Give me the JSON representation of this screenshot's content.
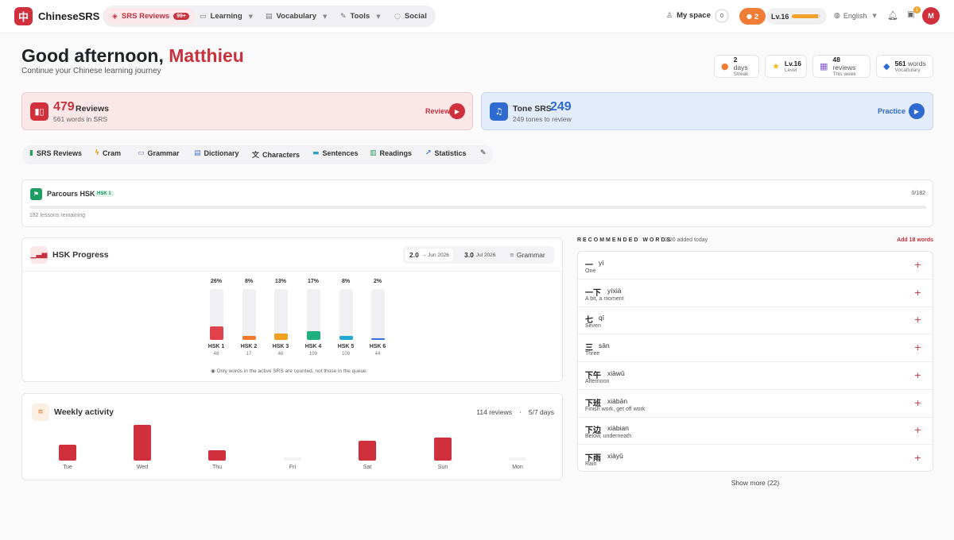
{
  "app": {
    "logo_glyph": "中",
    "name": "ChineseSRS"
  },
  "nav": {
    "items": [
      {
        "label": "SRS Reviews",
        "badge": "99+",
        "icon": "layers-icon",
        "glyph": "◈"
      },
      {
        "label": "Learning",
        "icon": "book-icon",
        "glyph": "▭"
      },
      {
        "label": "Vocabulary",
        "icon": "cards-icon",
        "glyph": "▤"
      },
      {
        "label": "Tools",
        "icon": "wrench-icon",
        "glyph": "✎"
      },
      {
        "label": "Social",
        "icon": "chat-icon",
        "glyph": "◌"
      }
    ]
  },
  "header": {
    "my_space": "My space",
    "counter": "0",
    "streak": "2",
    "level": "Lv.16",
    "level_progress": 0.9,
    "language": "English",
    "inbox_badge": "1",
    "avatar_initial": "M"
  },
  "greeting": {
    "prefix": "Good afternoon, ",
    "name": "Matthieu",
    "subtitle": "Continue your Chinese learning journey"
  },
  "stats": [
    {
      "value": "2",
      "unit": "days",
      "label": "Streak",
      "icon": "fire-icon"
    },
    {
      "value": "Lv.16",
      "unit": "",
      "label": "Level",
      "icon": "star-icon"
    },
    {
      "value": "48",
      "unit": "reviews",
      "label": "This week",
      "icon": "calendar-icon"
    },
    {
      "value": "561",
      "unit": "words",
      "label": "Vocabulary",
      "icon": "stack-icon"
    }
  ],
  "review_card": {
    "count": "479",
    "label": "Reviews",
    "sub": "561 words in SRS",
    "button": "Review"
  },
  "tone_card": {
    "label": "Tone SRS",
    "count": "249",
    "sub": "249 tones to review",
    "button": "Practice"
  },
  "tools": [
    {
      "label": "SRS Reviews"
    },
    {
      "label": "Cram"
    },
    {
      "label": "Grammar"
    },
    {
      "label": "Dictionary"
    },
    {
      "label": "Characters"
    },
    {
      "label": "Sentences"
    },
    {
      "label": "Readings"
    },
    {
      "label": "Statistics"
    }
  ],
  "parcours": {
    "title": "Parcours HSK",
    "tag": "HSK 1",
    "progress": "0/182",
    "progress_fraction": 0,
    "remaining": "182 lessons remaining"
  },
  "hsk_progress": {
    "title": "HSK Progress",
    "tabs": [
      {
        "label": "2.0",
        "sub": "→ Jun 2026"
      },
      {
        "label": "3.0",
        "sub": "Jul 2026"
      },
      {
        "label": "Grammar",
        "sub": ""
      }
    ],
    "levels": [
      {
        "name": "HSK 1",
        "percent": "26%",
        "fraction": 0.26,
        "count": "48",
        "color": "#e0414b"
      },
      {
        "name": "HSK 2",
        "percent": "8%",
        "fraction": 0.08,
        "count": "17",
        "color": "#f0782f"
      },
      {
        "name": "HSK 3",
        "percent": "13%",
        "fraction": 0.13,
        "count": "46",
        "color": "#f0a020"
      },
      {
        "name": "HSK 4",
        "percent": "17%",
        "fraction": 0.17,
        "count": "109",
        "color": "#20b080"
      },
      {
        "name": "HSK 5",
        "percent": "8%",
        "fraction": 0.08,
        "count": "109",
        "color": "#20a8d0"
      },
      {
        "name": "HSK 6",
        "percent": "2%",
        "fraction": 0.02,
        "count": "44",
        "color": "#3070e0"
      }
    ],
    "note": "Only words in the active SRS are counted, not those in the queue."
  },
  "weekly": {
    "title": "Weekly activity",
    "reviews": "114 reviews",
    "separator": "·",
    "days_summary": "5/7 days",
    "bar_color": "#d0303c",
    "empty_color": "#f2f2f4",
    "days": [
      {
        "day": "Tue",
        "level": 0.45
      },
      {
        "day": "Wed",
        "level": 1.0
      },
      {
        "day": "Thu",
        "level": 0.28
      },
      {
        "day": "Fri",
        "level": 0
      },
      {
        "day": "Sat",
        "level": 0.55
      },
      {
        "day": "Sun",
        "level": 0.65
      },
      {
        "day": "Mon",
        "level": 0
      }
    ]
  },
  "recommended": {
    "heading": "RECOMMENDED WORDS",
    "added": "2/20 added today",
    "add_all": "Add 18 words",
    "words": [
      {
        "hanzi": "一",
        "pinyin": "yī",
        "meaning": "One"
      },
      {
        "hanzi": "一下",
        "pinyin": "yíxià",
        "meaning": "A bit, a moment"
      },
      {
        "hanzi": "七",
        "pinyin": "qī",
        "meaning": "Seven"
      },
      {
        "hanzi": "三",
        "pinyin": "sān",
        "meaning": "Three"
      },
      {
        "hanzi": "下午",
        "pinyin": "xiàwǔ",
        "meaning": "Afternoon"
      },
      {
        "hanzi": "下班",
        "pinyin": "xiàbān",
        "meaning": "Finish work, get off work"
      },
      {
        "hanzi": "下边",
        "pinyin": "xiàbian",
        "meaning": "Below, underneath"
      },
      {
        "hanzi": "下雨",
        "pinyin": "xiàyǔ",
        "meaning": "Rain"
      }
    ],
    "show_more": "Show more (22)"
  }
}
